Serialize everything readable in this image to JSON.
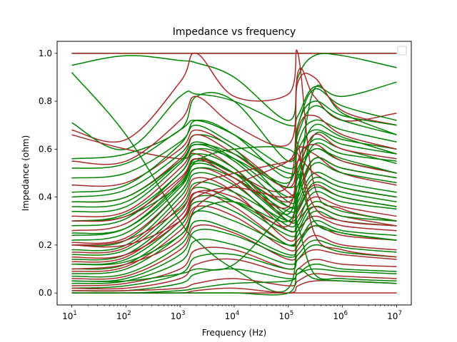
{
  "chart_data": {
    "type": "line",
    "title": "Impedance vs frequency",
    "xlabel": "Frequency (Hz)",
    "ylabel": "Impedance (ohm)",
    "xscale": "log",
    "xlim": [
      10,
      10000000
    ],
    "ylim": [
      -0.05,
      1.05
    ],
    "x_ticks": [
      {
        "value": 10,
        "base": "10",
        "exp": "1"
      },
      {
        "value": 100,
        "base": "10",
        "exp": "2"
      },
      {
        "value": 1000,
        "base": "10",
        "exp": "3"
      },
      {
        "value": 10000,
        "base": "10",
        "exp": "4"
      },
      {
        "value": 100000,
        "base": "10",
        "exp": "5"
      },
      {
        "value": 1000000,
        "base": "10",
        "exp": "6"
      },
      {
        "value": 10000000,
        "base": "10",
        "exp": "7"
      }
    ],
    "y_ticks": [
      {
        "value": 0.0,
        "label": "0.0"
      },
      {
        "value": 0.2,
        "label": "0.2"
      },
      {
        "value": 0.4,
        "label": "0.4"
      },
      {
        "value": 0.6,
        "label": "0.6"
      },
      {
        "value": 0.8,
        "label": "0.8"
      },
      {
        "value": 1.0,
        "label": "1.0"
      }
    ],
    "grid": false,
    "legend": {
      "placement": "upper right",
      "entries": []
    },
    "colors": {
      "series_a": "#008000",
      "series_b": "#a52a2a"
    },
    "x": [
      10,
      100,
      1000,
      2000,
      10000,
      100000,
      150000,
      300000,
      1000000,
      10000000
    ],
    "series": [
      {
        "color": "#008000",
        "values": [
          1.0,
          1.0,
          1.0,
          1.0,
          1.0,
          1.0,
          1.0,
          1.0,
          1.0,
          1.0
        ]
      },
      {
        "color": "#a52a2a",
        "values": [
          1.0,
          1.0,
          1.0,
          1.0,
          1.0,
          1.0,
          1.0,
          1.0,
          1.0,
          1.0
        ]
      },
      {
        "color": "#008000",
        "values": [
          0.92,
          0.66,
          0.3,
          0.22,
          0.1,
          0.02,
          0.4,
          0.85,
          0.75,
          0.66
        ]
      },
      {
        "color": "#008000",
        "values": [
          0.95,
          0.99,
          0.97,
          0.96,
          0.9,
          0.72,
          0.9,
          0.99,
          0.99,
          0.94
        ]
      },
      {
        "color": "#a52a2a",
        "values": [
          0.68,
          0.64,
          0.88,
          1.0,
          0.82,
          0.83,
          1.0,
          0.45,
          0.35,
          0.3
        ]
      },
      {
        "color": "#008000",
        "values": [
          0.71,
          0.6,
          0.82,
          0.83,
          0.8,
          0.7,
          0.74,
          0.86,
          0.82,
          0.88
        ]
      },
      {
        "color": "#a52a2a",
        "values": [
          0.66,
          0.6,
          0.56,
          0.58,
          0.5,
          0.45,
          0.92,
          0.82,
          0.72,
          0.75
        ]
      },
      {
        "color": "#008000",
        "values": [
          0.56,
          0.58,
          0.68,
          0.82,
          0.8,
          0.55,
          0.7,
          0.85,
          0.78,
          0.72
        ]
      },
      {
        "color": "#a52a2a",
        "values": [
          0.55,
          0.55,
          0.72,
          0.82,
          0.7,
          0.62,
          0.88,
          0.9,
          0.76,
          0.7
        ]
      },
      {
        "color": "#008000",
        "values": [
          0.52,
          0.54,
          0.68,
          0.72,
          0.66,
          0.52,
          0.6,
          0.68,
          0.64,
          0.6
        ]
      },
      {
        "color": "#008000",
        "values": [
          0.48,
          0.5,
          0.63,
          0.7,
          0.62,
          0.5,
          0.55,
          0.7,
          0.65,
          0.58
        ]
      },
      {
        "color": "#a52a2a",
        "values": [
          0.45,
          0.46,
          0.6,
          0.68,
          0.6,
          0.42,
          0.4,
          0.56,
          0.52,
          0.48
        ]
      },
      {
        "color": "#008000",
        "values": [
          0.42,
          0.45,
          0.62,
          0.72,
          0.66,
          0.48,
          0.66,
          0.78,
          0.72,
          0.66
        ]
      },
      {
        "color": "#008000",
        "values": [
          0.4,
          0.43,
          0.58,
          0.66,
          0.6,
          0.38,
          0.45,
          0.62,
          0.58,
          0.55
        ]
      },
      {
        "color": "#a52a2a",
        "values": [
          0.38,
          0.4,
          0.56,
          0.66,
          0.58,
          0.44,
          0.6,
          0.58,
          0.5,
          0.45
        ]
      },
      {
        "color": "#008000",
        "values": [
          0.36,
          0.38,
          0.55,
          0.63,
          0.56,
          0.4,
          0.48,
          0.6,
          0.55,
          0.5
        ]
      },
      {
        "color": "#008000",
        "values": [
          0.34,
          0.36,
          0.54,
          0.62,
          0.55,
          0.36,
          0.42,
          0.66,
          0.62,
          0.58
        ]
      },
      {
        "color": "#a52a2a",
        "values": [
          0.32,
          0.34,
          0.52,
          0.6,
          0.52,
          0.3,
          0.35,
          0.45,
          0.4,
          0.36
        ]
      },
      {
        "color": "#008000",
        "values": [
          0.3,
          0.33,
          0.5,
          0.6,
          0.56,
          0.44,
          0.52,
          0.64,
          0.6,
          0.54
        ]
      },
      {
        "color": "#008000",
        "values": [
          0.28,
          0.31,
          0.5,
          0.58,
          0.52,
          0.32,
          0.38,
          0.5,
          0.46,
          0.42
        ]
      },
      {
        "color": "#a52a2a",
        "values": [
          0.26,
          0.29,
          0.47,
          0.56,
          0.5,
          0.38,
          0.55,
          0.5,
          0.44,
          0.4
        ]
      },
      {
        "color": "#008000",
        "values": [
          0.24,
          0.27,
          0.46,
          0.55,
          0.5,
          0.36,
          0.42,
          0.56,
          0.52,
          0.48
        ]
      },
      {
        "color": "#008000",
        "values": [
          0.22,
          0.25,
          0.44,
          0.54,
          0.48,
          0.3,
          0.34,
          0.46,
          0.42,
          0.38
        ]
      },
      {
        "color": "#a52a2a",
        "values": [
          0.21,
          0.23,
          0.42,
          0.52,
          0.46,
          0.26,
          0.32,
          0.4,
          0.36,
          0.32
        ]
      },
      {
        "color": "#008000",
        "values": [
          0.2,
          0.22,
          0.42,
          0.52,
          0.48,
          0.34,
          0.4,
          0.54,
          0.5,
          0.46
        ]
      },
      {
        "color": "#008000",
        "values": [
          0.18,
          0.2,
          0.4,
          0.5,
          0.45,
          0.28,
          0.34,
          0.44,
          0.4,
          0.36
        ]
      },
      {
        "color": "#a52a2a",
        "values": [
          0.17,
          0.19,
          0.38,
          0.48,
          0.42,
          0.22,
          0.3,
          0.36,
          0.32,
          0.28
        ]
      },
      {
        "color": "#008000",
        "values": [
          0.16,
          0.18,
          0.36,
          0.46,
          0.42,
          0.3,
          0.36,
          0.48,
          0.44,
          0.4
        ]
      },
      {
        "color": "#008000",
        "values": [
          0.14,
          0.16,
          0.34,
          0.44,
          0.38,
          0.24,
          0.28,
          0.38,
          0.34,
          0.3
        ]
      },
      {
        "color": "#a52a2a",
        "values": [
          0.13,
          0.15,
          0.32,
          0.42,
          0.36,
          0.2,
          0.26,
          0.32,
          0.28,
          0.26
        ]
      },
      {
        "color": "#008000",
        "values": [
          0.12,
          0.14,
          0.3,
          0.4,
          0.38,
          0.26,
          0.3,
          0.42,
          0.38,
          0.35
        ]
      },
      {
        "color": "#008000",
        "values": [
          0.1,
          0.12,
          0.28,
          0.38,
          0.34,
          0.2,
          0.24,
          0.34,
          0.3,
          0.28
        ]
      },
      {
        "color": "#a52a2a",
        "values": [
          0.09,
          0.11,
          0.26,
          0.36,
          0.32,
          0.18,
          0.22,
          0.28,
          0.24,
          0.22
        ]
      },
      {
        "color": "#008000",
        "values": [
          0.08,
          0.1,
          0.24,
          0.34,
          0.3,
          0.2,
          0.26,
          0.36,
          0.32,
          0.3
        ]
      },
      {
        "color": "#008000",
        "values": [
          0.07,
          0.08,
          0.2,
          0.3,
          0.26,
          0.16,
          0.2,
          0.28,
          0.25,
          0.22
        ]
      },
      {
        "color": "#a52a2a",
        "values": [
          0.06,
          0.07,
          0.18,
          0.28,
          0.25,
          0.14,
          0.18,
          0.24,
          0.2,
          0.18
        ]
      },
      {
        "color": "#008000",
        "values": [
          0.05,
          0.06,
          0.16,
          0.26,
          0.24,
          0.15,
          0.2,
          0.3,
          0.26,
          0.24
        ]
      },
      {
        "color": "#008000",
        "values": [
          0.04,
          0.05,
          0.13,
          0.22,
          0.2,
          0.12,
          0.16,
          0.22,
          0.19,
          0.17
        ]
      },
      {
        "color": "#a52a2a",
        "values": [
          0.03,
          0.04,
          0.1,
          0.18,
          0.18,
          0.1,
          0.14,
          0.18,
          0.16,
          0.14
        ]
      },
      {
        "color": "#008000",
        "values": [
          0.02,
          0.03,
          0.08,
          0.15,
          0.16,
          0.1,
          0.14,
          0.2,
          0.17,
          0.15
        ]
      },
      {
        "color": "#a52a2a",
        "values": [
          0.02,
          0.02,
          0.06,
          0.12,
          0.14,
          0.08,
          0.1,
          0.14,
          0.12,
          0.11
        ]
      },
      {
        "color": "#008000",
        "values": [
          0.01,
          0.01,
          0.04,
          0.08,
          0.1,
          0.06,
          0.08,
          0.12,
          0.1,
          0.09
        ]
      },
      {
        "color": "#a52a2a",
        "values": [
          0.01,
          0.01,
          0.02,
          0.04,
          0.06,
          0.03,
          0.05,
          0.08,
          0.07,
          0.06
        ]
      },
      {
        "color": "#008000",
        "values": [
          0.0,
          0.0,
          0.01,
          0.02,
          0.04,
          0.05,
          0.08,
          0.1,
          0.09,
          0.08
        ]
      },
      {
        "color": "#a52a2a",
        "values": [
          0.0,
          0.0,
          0.0,
          0.0,
          0.0,
          0.0,
          0.0,
          0.0,
          0.0,
          0.0
        ]
      },
      {
        "color": "#a52a2a",
        "values": [
          0.1,
          0.12,
          0.22,
          0.36,
          0.45,
          0.55,
          0.62,
          0.25,
          0.18,
          0.15
        ]
      },
      {
        "color": "#008000",
        "values": [
          0.3,
          0.32,
          0.45,
          0.55,
          0.6,
          0.6,
          0.5,
          0.3,
          0.25,
          0.22
        ]
      },
      {
        "color": "#a52a2a",
        "values": [
          0.2,
          0.22,
          0.35,
          0.45,
          0.5,
          0.55,
          0.58,
          0.36,
          0.3,
          0.28
        ]
      },
      {
        "color": "#008000",
        "values": [
          0.05,
          0.05,
          0.08,
          0.1,
          0.12,
          0.35,
          0.28,
          0.08,
          0.06,
          0.05
        ]
      },
      {
        "color": "#a52a2a",
        "values": [
          0.0,
          0.0,
          0.0,
          0.01,
          0.02,
          0.0,
          0.03,
          0.05,
          0.05,
          0.04
        ]
      },
      {
        "color": "#008000",
        "values": [
          0.0,
          0.0,
          0.0,
          0.0,
          0.0,
          0.0,
          0.1,
          0.06,
          0.05,
          0.04
        ]
      },
      {
        "color": "#a52a2a",
        "values": [
          0.15,
          0.16,
          0.3,
          0.42,
          0.4,
          0.28,
          0.55,
          0.62,
          0.55,
          0.5
        ]
      },
      {
        "color": "#008000",
        "values": [
          0.25,
          0.27,
          0.45,
          0.56,
          0.5,
          0.33,
          0.62,
          0.72,
          0.68,
          0.63
        ]
      },
      {
        "color": "#a52a2a",
        "values": [
          0.3,
          0.32,
          0.48,
          0.56,
          0.48,
          0.36,
          0.68,
          0.74,
          0.66,
          0.6
        ]
      },
      {
        "color": "#008000",
        "values": [
          0.38,
          0.4,
          0.55,
          0.62,
          0.58,
          0.46,
          0.7,
          0.8,
          0.74,
          0.7
        ]
      },
      {
        "color": "#a52a2a",
        "values": [
          0.2,
          0.2,
          0.3,
          0.4,
          0.44,
          0.4,
          0.5,
          0.66,
          0.6,
          0.56
        ]
      },
      {
        "color": "#008000",
        "values": [
          0.12,
          0.13,
          0.24,
          0.34,
          0.38,
          0.3,
          0.5,
          0.6,
          0.56,
          0.5
        ]
      }
    ]
  }
}
